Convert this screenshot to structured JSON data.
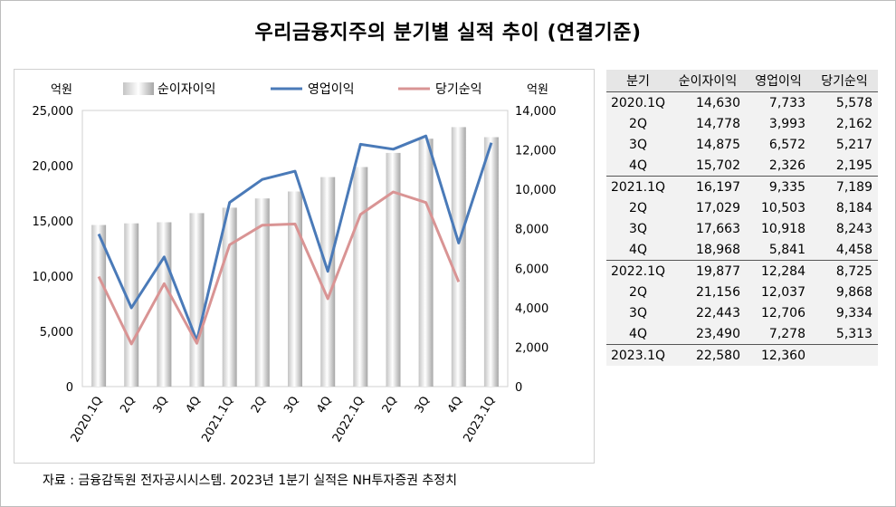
{
  "title": "우리금융지주의 분기별 실적 추이 (연결기준)",
  "source": "자료 : 금융감독원 전자공시시스템. 2023년 1분기 실적은 NH투자증권 추정치",
  "chart_data": {
    "type": "bar",
    "categories": [
      "2020.1Q",
      "2Q",
      "3Q",
      "4Q",
      "2021.1Q",
      "2Q",
      "3Q",
      "4Q",
      "2022.1Q",
      "2Q",
      "3Q",
      "4Q",
      "2023.1Q"
    ],
    "left_unit": "억원",
    "right_unit": "억원",
    "y_left_lim": [
      0,
      25000
    ],
    "y_right_lim": [
      0,
      14000
    ],
    "y_left_ticks": [
      "0",
      "5,000",
      "10,000",
      "15,000",
      "20,000",
      "25,000"
    ],
    "y_right_ticks": [
      "0",
      "2,000",
      "4,000",
      "6,000",
      "8,000",
      "10,000",
      "12,000",
      "14,000"
    ],
    "legend_position": "top",
    "grid": false,
    "series": [
      {
        "name": "순이자이익",
        "type": "bar",
        "axis": "left",
        "color": "#b8b8b8",
        "values": [
          14630,
          14778,
          14875,
          15702,
          16197,
          17029,
          17663,
          18968,
          19877,
          21156,
          22443,
          23490,
          22580
        ]
      },
      {
        "name": "영업이익",
        "type": "line",
        "axis": "right",
        "color": "#4a7ab8",
        "values": [
          7733,
          3993,
          6572,
          2326,
          9335,
          10503,
          10918,
          5841,
          12284,
          12037,
          12706,
          7278,
          12360
        ]
      },
      {
        "name": "당기순익",
        "type": "line",
        "axis": "right",
        "color": "#d99494",
        "values": [
          5578,
          2162,
          5217,
          2195,
          7189,
          8184,
          8243,
          4458,
          8725,
          9868,
          9334,
          5313,
          null
        ]
      }
    ]
  },
  "table": {
    "headers": [
      "분기",
      "순이자이익",
      "영업이익",
      "당기순익"
    ],
    "rows": [
      [
        "2020.1Q",
        "14,630",
        "7,733",
        "5,578"
      ],
      [
        "2Q",
        "14,778",
        "3,993",
        "2,162"
      ],
      [
        "3Q",
        "14,875",
        "6,572",
        "5,217"
      ],
      [
        "4Q",
        "15,702",
        "2,326",
        "2,195"
      ],
      [
        "2021.1Q",
        "16,197",
        "9,335",
        "7,189"
      ],
      [
        "2Q",
        "17,029",
        "10,503",
        "8,184"
      ],
      [
        "3Q",
        "17,663",
        "10,918",
        "8,243"
      ],
      [
        "4Q",
        "18,968",
        "5,841",
        "4,458"
      ],
      [
        "2022.1Q",
        "19,877",
        "12,284",
        "8,725"
      ],
      [
        "2Q",
        "21,156",
        "12,037",
        "9,868"
      ],
      [
        "3Q",
        "22,443",
        "12,706",
        "9,334"
      ],
      [
        "4Q",
        "23,490",
        "7,278",
        "5,313"
      ],
      [
        "2023.1Q",
        "22,580",
        "12,360",
        ""
      ]
    ]
  }
}
